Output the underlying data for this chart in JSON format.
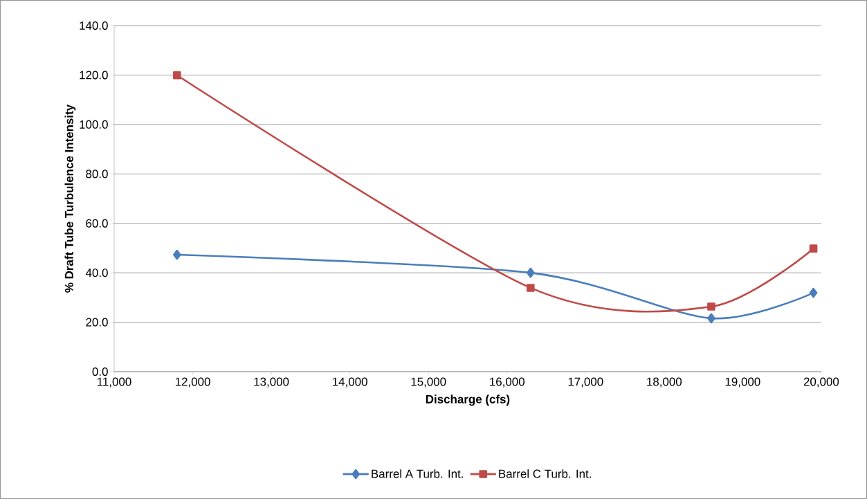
{
  "chart_data": {
    "type": "line",
    "xlabel": "Discharge (cfs)",
    "ylabel": "% Draft Tube Turbulence Intensity",
    "x": [
      11800,
      16300,
      18600,
      19900
    ],
    "series": [
      {
        "name": "Barrel A Turb. Int.",
        "color": "#4a7ebb",
        "marker": "diamond",
        "values": [
          47.3,
          40.0,
          21.6,
          31.9
        ]
      },
      {
        "name": "Barrel C Turb. Int.",
        "color": "#be4b48",
        "marker": "square",
        "values": [
          119.9,
          33.9,
          26.3,
          49.8
        ]
      }
    ],
    "xlim": [
      11000,
      20000
    ],
    "xticks": [
      {
        "value": 11000,
        "label": "11,000"
      },
      {
        "value": 12000,
        "label": "12,000"
      },
      {
        "value": 13000,
        "label": "13,000"
      },
      {
        "value": 14000,
        "label": "14,000"
      },
      {
        "value": 15000,
        "label": "15,000"
      },
      {
        "value": 16000,
        "label": "16,000"
      },
      {
        "value": 17000,
        "label": "17,000"
      },
      {
        "value": 18000,
        "label": "18,000"
      },
      {
        "value": 19000,
        "label": "19,000"
      },
      {
        "value": 20000,
        "label": "20,000"
      }
    ],
    "ylim": [
      0,
      140
    ],
    "yticks": [
      {
        "value": 0,
        "label": "0.0"
      },
      {
        "value": 20,
        "label": "20.0"
      },
      {
        "value": 40,
        "label": "40.0"
      },
      {
        "value": 60,
        "label": "60.0"
      },
      {
        "value": 80,
        "label": "80.0"
      },
      {
        "value": 100,
        "label": "100.0"
      },
      {
        "value": 120,
        "label": "120.0"
      },
      {
        "value": 140,
        "label": "140.0"
      }
    ],
    "grid": "y",
    "legend": "bottom"
  }
}
